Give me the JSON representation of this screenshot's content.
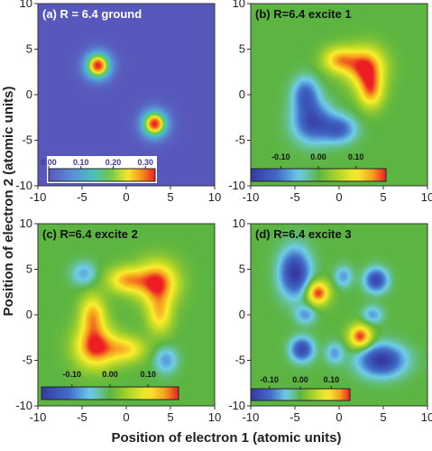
{
  "figure": {
    "xlabel": "Position of electron 1 (atomic units)",
    "ylabel": "Position of electron 2 (atomic units)"
  },
  "chart_data": [
    {
      "type": "heatmap",
      "title": "(a) R = 6.4 ground",
      "xlim": [
        -10,
        10
      ],
      "ylim": [
        -10,
        10
      ],
      "x_ticks": [
        "-10",
        "-5",
        "0",
        "5",
        "10"
      ],
      "y_ticks": [
        "-10",
        "-5",
        "0",
        "5",
        "10"
      ],
      "background_value": 0.0,
      "colorbar": {
        "min": 0.0,
        "max": 0.33,
        "tick_labels": [
          "0.00",
          "0.10",
          "0.20",
          "0.30"
        ],
        "tick_values": [
          0.0,
          0.1,
          0.2,
          0.3
        ]
      },
      "features": [
        {
          "x": -3.2,
          "y": 3.2,
          "sx": 1.0,
          "sy": 1.0,
          "amp": 0.33
        },
        {
          "x": 3.2,
          "y": -3.2,
          "sx": 1.0,
          "sy": 1.0,
          "amp": 0.33
        }
      ]
    },
    {
      "type": "heatmap",
      "title": "(b) R=6.4 excite 1",
      "xlim": [
        -10,
        10
      ],
      "ylim": [
        -10,
        10
      ],
      "x_ticks": [
        "-10",
        "-5",
        "0",
        "5",
        "10"
      ],
      "y_ticks": [
        "-10",
        "-5",
        "0",
        "5",
        "10"
      ],
      "background_value": 0.0,
      "colorbar": {
        "min": -0.18,
        "max": 0.18,
        "tick_labels": [
          "-0.10",
          "0.00",
          "0.10"
        ],
        "tick_values": [
          -0.1,
          0.0,
          0.1
        ]
      },
      "features": [
        {
          "x": 3.0,
          "y": 3.0,
          "sx": 1.5,
          "sy": 1.5,
          "amp": 0.18
        },
        {
          "x": 0.0,
          "y": 3.8,
          "sx": 1.3,
          "sy": 1.0,
          "amp": 0.13
        },
        {
          "x": 3.6,
          "y": 0.3,
          "sx": 1.0,
          "sy": 1.3,
          "amp": 0.13
        },
        {
          "x": -3.0,
          "y": -3.0,
          "sx": 1.5,
          "sy": 1.5,
          "amp": -0.15
        },
        {
          "x": 0.0,
          "y": -3.8,
          "sx": 1.3,
          "sy": 1.0,
          "amp": -0.12
        },
        {
          "x": -3.8,
          "y": 0.0,
          "sx": 1.0,
          "sy": 1.3,
          "amp": -0.12
        }
      ]
    },
    {
      "type": "heatmap",
      "title": "(c) R=6.4 excite 2",
      "xlim": [
        -10,
        10
      ],
      "ylim": [
        -10,
        10
      ],
      "x_ticks": [
        "-10",
        "-5",
        "0",
        "5",
        "10"
      ],
      "y_ticks": [
        "-10",
        "-5",
        "0",
        "5",
        "10"
      ],
      "background_value": 0.0,
      "colorbar": {
        "min": -0.18,
        "max": 0.18,
        "tick_labels": [
          "-0.10",
          "0.00",
          "0.10"
        ],
        "tick_values": [
          -0.1,
          0.0,
          0.1
        ]
      },
      "features": [
        {
          "x": -3.5,
          "y": -3.5,
          "sx": 1.6,
          "sy": 1.6,
          "amp": 0.18
        },
        {
          "x": 3.5,
          "y": 3.5,
          "sx": 1.6,
          "sy": 1.6,
          "amp": 0.18
        },
        {
          "x": 0.0,
          "y": 3.8,
          "sx": 1.5,
          "sy": 1.0,
          "amp": 0.13
        },
        {
          "x": -3.8,
          "y": 0.0,
          "sx": 1.0,
          "sy": 1.5,
          "amp": 0.13
        },
        {
          "x": 0.0,
          "y": -3.8,
          "sx": 1.5,
          "sy": 1.0,
          "amp": 0.11
        },
        {
          "x": 3.8,
          "y": 0.0,
          "sx": 1.0,
          "sy": 1.5,
          "amp": 0.11
        },
        {
          "x": -4.8,
          "y": 4.5,
          "sx": 1.0,
          "sy": 0.9,
          "amp": -0.07
        },
        {
          "x": 4.5,
          "y": -5.0,
          "sx": 0.9,
          "sy": 1.0,
          "amp": -0.08
        }
      ]
    },
    {
      "type": "heatmap",
      "title": "(d) R=6.4 excite 3",
      "xlim": [
        -10,
        10
      ],
      "ylim": [
        -10,
        10
      ],
      "x_ticks": [
        "-10",
        "-5",
        "0",
        "5",
        "10"
      ],
      "y_ticks": [
        "-10",
        "-5",
        "0",
        "5",
        "10"
      ],
      "background_value": 0.0,
      "colorbar": {
        "min": -0.16,
        "max": 0.16,
        "tick_labels": [
          "-0.10",
          "0.00",
          "0.10"
        ],
        "tick_values": [
          -0.1,
          0.0,
          0.1
        ]
      },
      "features": [
        {
          "x": -5.0,
          "y": 4.6,
          "sx": 1.2,
          "sy": 1.8,
          "amp": -0.16
        },
        {
          "x": 4.8,
          "y": -5.0,
          "sx": 1.8,
          "sy": 1.2,
          "amp": -0.16
        },
        {
          "x": -2.4,
          "y": 2.4,
          "sx": 0.9,
          "sy": 0.9,
          "amp": 0.16
        },
        {
          "x": 2.4,
          "y": -2.4,
          "sx": 0.9,
          "sy": 0.9,
          "amp": 0.16
        },
        {
          "x": 4.2,
          "y": 3.8,
          "sx": 0.9,
          "sy": 0.9,
          "amp": -0.14
        },
        {
          "x": -4.2,
          "y": -3.8,
          "sx": 0.9,
          "sy": 0.9,
          "amp": -0.14
        },
        {
          "x": 0.5,
          "y": 4.2,
          "sx": 0.7,
          "sy": 0.8,
          "amp": -0.07
        },
        {
          "x": 3.8,
          "y": 0.0,
          "sx": 0.8,
          "sy": 0.7,
          "amp": -0.07
        },
        {
          "x": -0.5,
          "y": -4.2,
          "sx": 0.7,
          "sy": 0.8,
          "amp": -0.07
        },
        {
          "x": -3.8,
          "y": 0.0,
          "sx": 0.8,
          "sy": 0.7,
          "amp": -0.07
        }
      ]
    }
  ]
}
